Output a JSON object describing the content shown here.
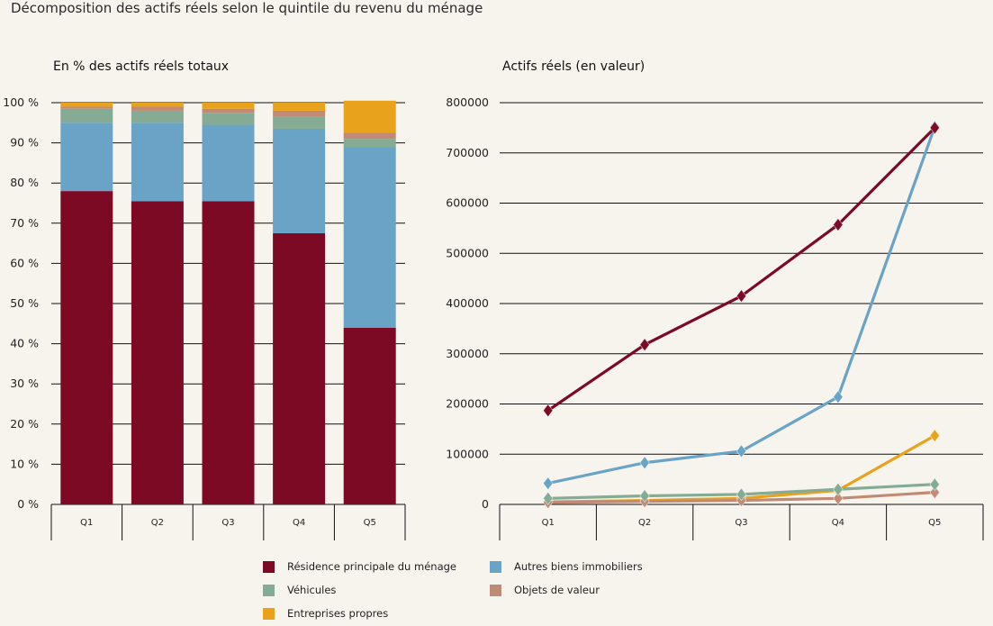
{
  "title": "Décomposition des actifs réels selon le quintile du revenu du ménage",
  "colors": {
    "residence": "#7d0a24",
    "autres": "#69a3c6",
    "vehicules": "#86ab94",
    "objets": "#c08a74",
    "entreprises": "#e9a21c",
    "grid": "#111111"
  },
  "legend": [
    {
      "name": "Résidence principale du ménage",
      "color_key": "residence"
    },
    {
      "name": "Autres biens immobiliers",
      "color_key": "autres"
    },
    {
      "name": "Véhicules",
      "color_key": "vehicules"
    },
    {
      "name": "Objets de valeur",
      "color_key": "objets"
    },
    {
      "name": "Entreprises propres",
      "color_key": "entreprises"
    }
  ],
  "chart_data": [
    {
      "type": "bar",
      "stacked": true,
      "title": "En % des actifs réels totaux",
      "categories": [
        "Q1",
        "Q2",
        "Q3",
        "Q4",
        "Q5"
      ],
      "yticks": [
        "0 %",
        "10 %",
        "20 %",
        "30 %",
        "40 %",
        "50 %",
        "60 %",
        "70 %",
        "80 %",
        "90 %",
        "100 %"
      ],
      "ylim": [
        0,
        100
      ],
      "grid": true,
      "series": [
        {
          "name": "Résidence principale du ménage",
          "color_key": "residence",
          "values": [
            78,
            75.5,
            75.5,
            67.5,
            44
          ]
        },
        {
          "name": "Autres biens immobiliers",
          "color_key": "autres",
          "values": [
            17,
            19.5,
            19,
            26,
            45
          ]
        },
        {
          "name": "Véhicules",
          "color_key": "vehicules",
          "values": [
            3.5,
            3,
            3,
            3,
            2
          ]
        },
        {
          "name": "Objets de valeur",
          "color_key": "objets",
          "values": [
            0.5,
            1,
            1,
            1.5,
            1.5
          ]
        },
        {
          "name": "Entreprises propres",
          "color_key": "entreprises",
          "values": [
            1,
            1,
            1.5,
            2,
            8
          ]
        }
      ]
    },
    {
      "type": "line",
      "title": "Actifs réels (en valeur)",
      "categories": [
        "Q1",
        "Q2",
        "Q3",
        "Q4",
        "Q5"
      ],
      "yticks": [
        "0",
        "100000",
        "200000",
        "300000",
        "400000",
        "500000",
        "600000",
        "700000",
        "800000"
      ],
      "ylim": [
        0,
        800000
      ],
      "grid": true,
      "series": [
        {
          "name": "Résidence principale du ménage",
          "color_key": "residence",
          "values": [
            187000,
            318000,
            415000,
            557000,
            750000
          ]
        },
        {
          "name": "Autres biens immobiliers",
          "color_key": "autres",
          "values": [
            42000,
            83000,
            106000,
            214000,
            752000
          ]
        },
        {
          "name": "Véhicules",
          "color_key": "vehicules",
          "values": [
            12000,
            17000,
            20000,
            30000,
            40000
          ]
        },
        {
          "name": "Objets de valeur",
          "color_key": "objets",
          "values": [
            4000,
            6000,
            8000,
            12000,
            24000
          ]
        },
        {
          "name": "Entreprises propres",
          "color_key": "entreprises",
          "values": [
            5000,
            8000,
            12000,
            28000,
            137000
          ]
        }
      ]
    }
  ]
}
